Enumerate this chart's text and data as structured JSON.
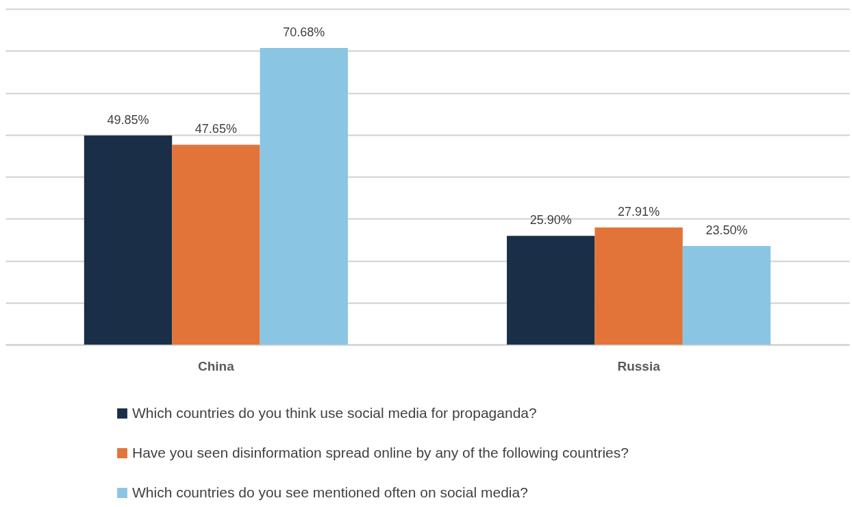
{
  "chart_data": {
    "type": "bar",
    "categories": [
      "China",
      "Russia"
    ],
    "series": [
      {
        "name": "Which countries do you think use social media for propaganda?",
        "color": "#1a2e48",
        "values": [
          49.85,
          25.9
        ],
        "value_labels": [
          "49.85%",
          "25.90%"
        ]
      },
      {
        "name": "Have you seen disinformation spread online by any of the following countries?",
        "color": "#e2743a",
        "values": [
          47.65,
          27.91
        ],
        "value_labels": [
          "47.65%",
          "27.91%"
        ]
      },
      {
        "name": "Which countries do you see mentioned often on social media?",
        "color": "#8ac6e3",
        "values": [
          70.68,
          23.5
        ],
        "value_labels": [
          "70.68%",
          "23.50%"
        ]
      }
    ],
    "ylim": [
      0,
      80
    ],
    "yticks": [
      {
        "value": 0,
        "label": null
      },
      {
        "value": 10,
        "label": null
      },
      {
        "value": 20,
        "label": null
      },
      {
        "value": 30,
        "label": null
      },
      {
        "value": 40,
        "label": null
      },
      {
        "value": 50,
        "label": null
      },
      {
        "value": 60,
        "label": null
      },
      {
        "value": 70,
        "label": null
      },
      {
        "value": 80,
        "label": null
      }
    ],
    "grid": true,
    "legend": "bottom",
    "tick_labels": "x"
  }
}
